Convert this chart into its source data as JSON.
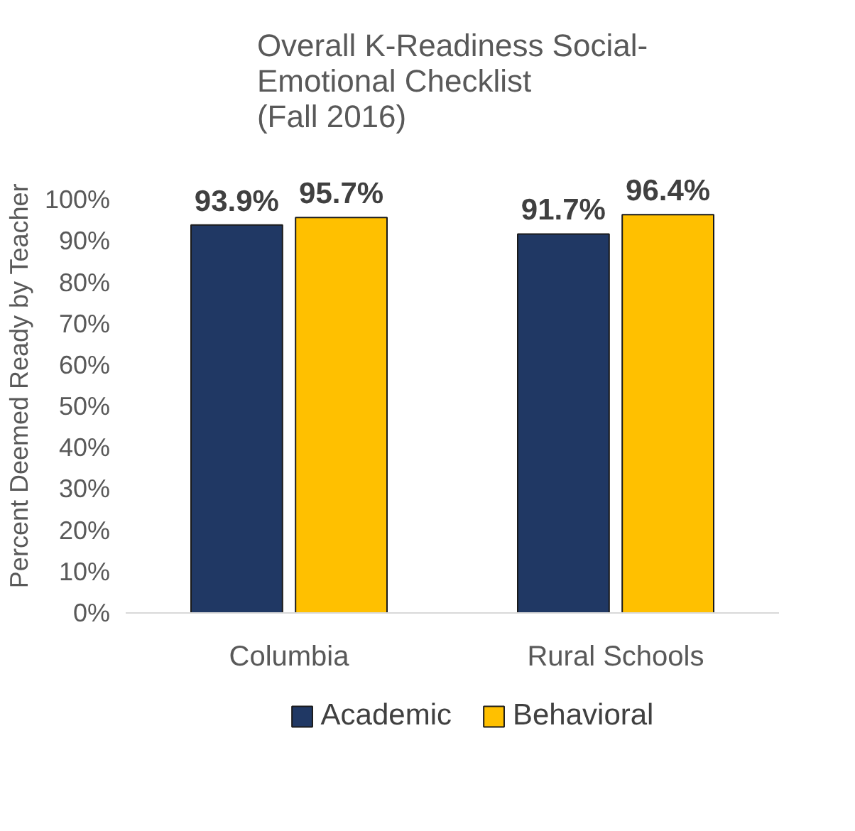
{
  "chart_data": {
    "type": "bar",
    "title": "Overall K-Readiness Social-\nEmotional Checklist\n(Fall 2016)",
    "ylabel": "Percent Deemed Ready by Teacher",
    "categories": [
      "Columbia",
      "Rural Schools"
    ],
    "series": [
      {
        "name": "Academic",
        "color": "#203864",
        "values": [
          93.9,
          91.7
        ],
        "value_labels": [
          "93.9%",
          "91.7%"
        ]
      },
      {
        "name": "Behavioral",
        "color": "#ffc000",
        "values": [
          95.7,
          96.4
        ],
        "value_labels": [
          "95.7%",
          "96.4%"
        ]
      }
    ],
    "ylim": [
      0,
      100
    ],
    "yticks": [
      {
        "value": 0,
        "label": "0%"
      },
      {
        "value": 10,
        "label": "10%"
      },
      {
        "value": 20,
        "label": "20%"
      },
      {
        "value": 30,
        "label": "30%"
      },
      {
        "value": 40,
        "label": "40%"
      },
      {
        "value": 50,
        "label": "50%"
      },
      {
        "value": 60,
        "label": "60%"
      },
      {
        "value": 70,
        "label": "70%"
      },
      {
        "value": 80,
        "label": "80%"
      },
      {
        "value": 90,
        "label": "90%"
      },
      {
        "value": 100,
        "label": "100%"
      }
    ],
    "grid": false,
    "legend": "bottom"
  }
}
